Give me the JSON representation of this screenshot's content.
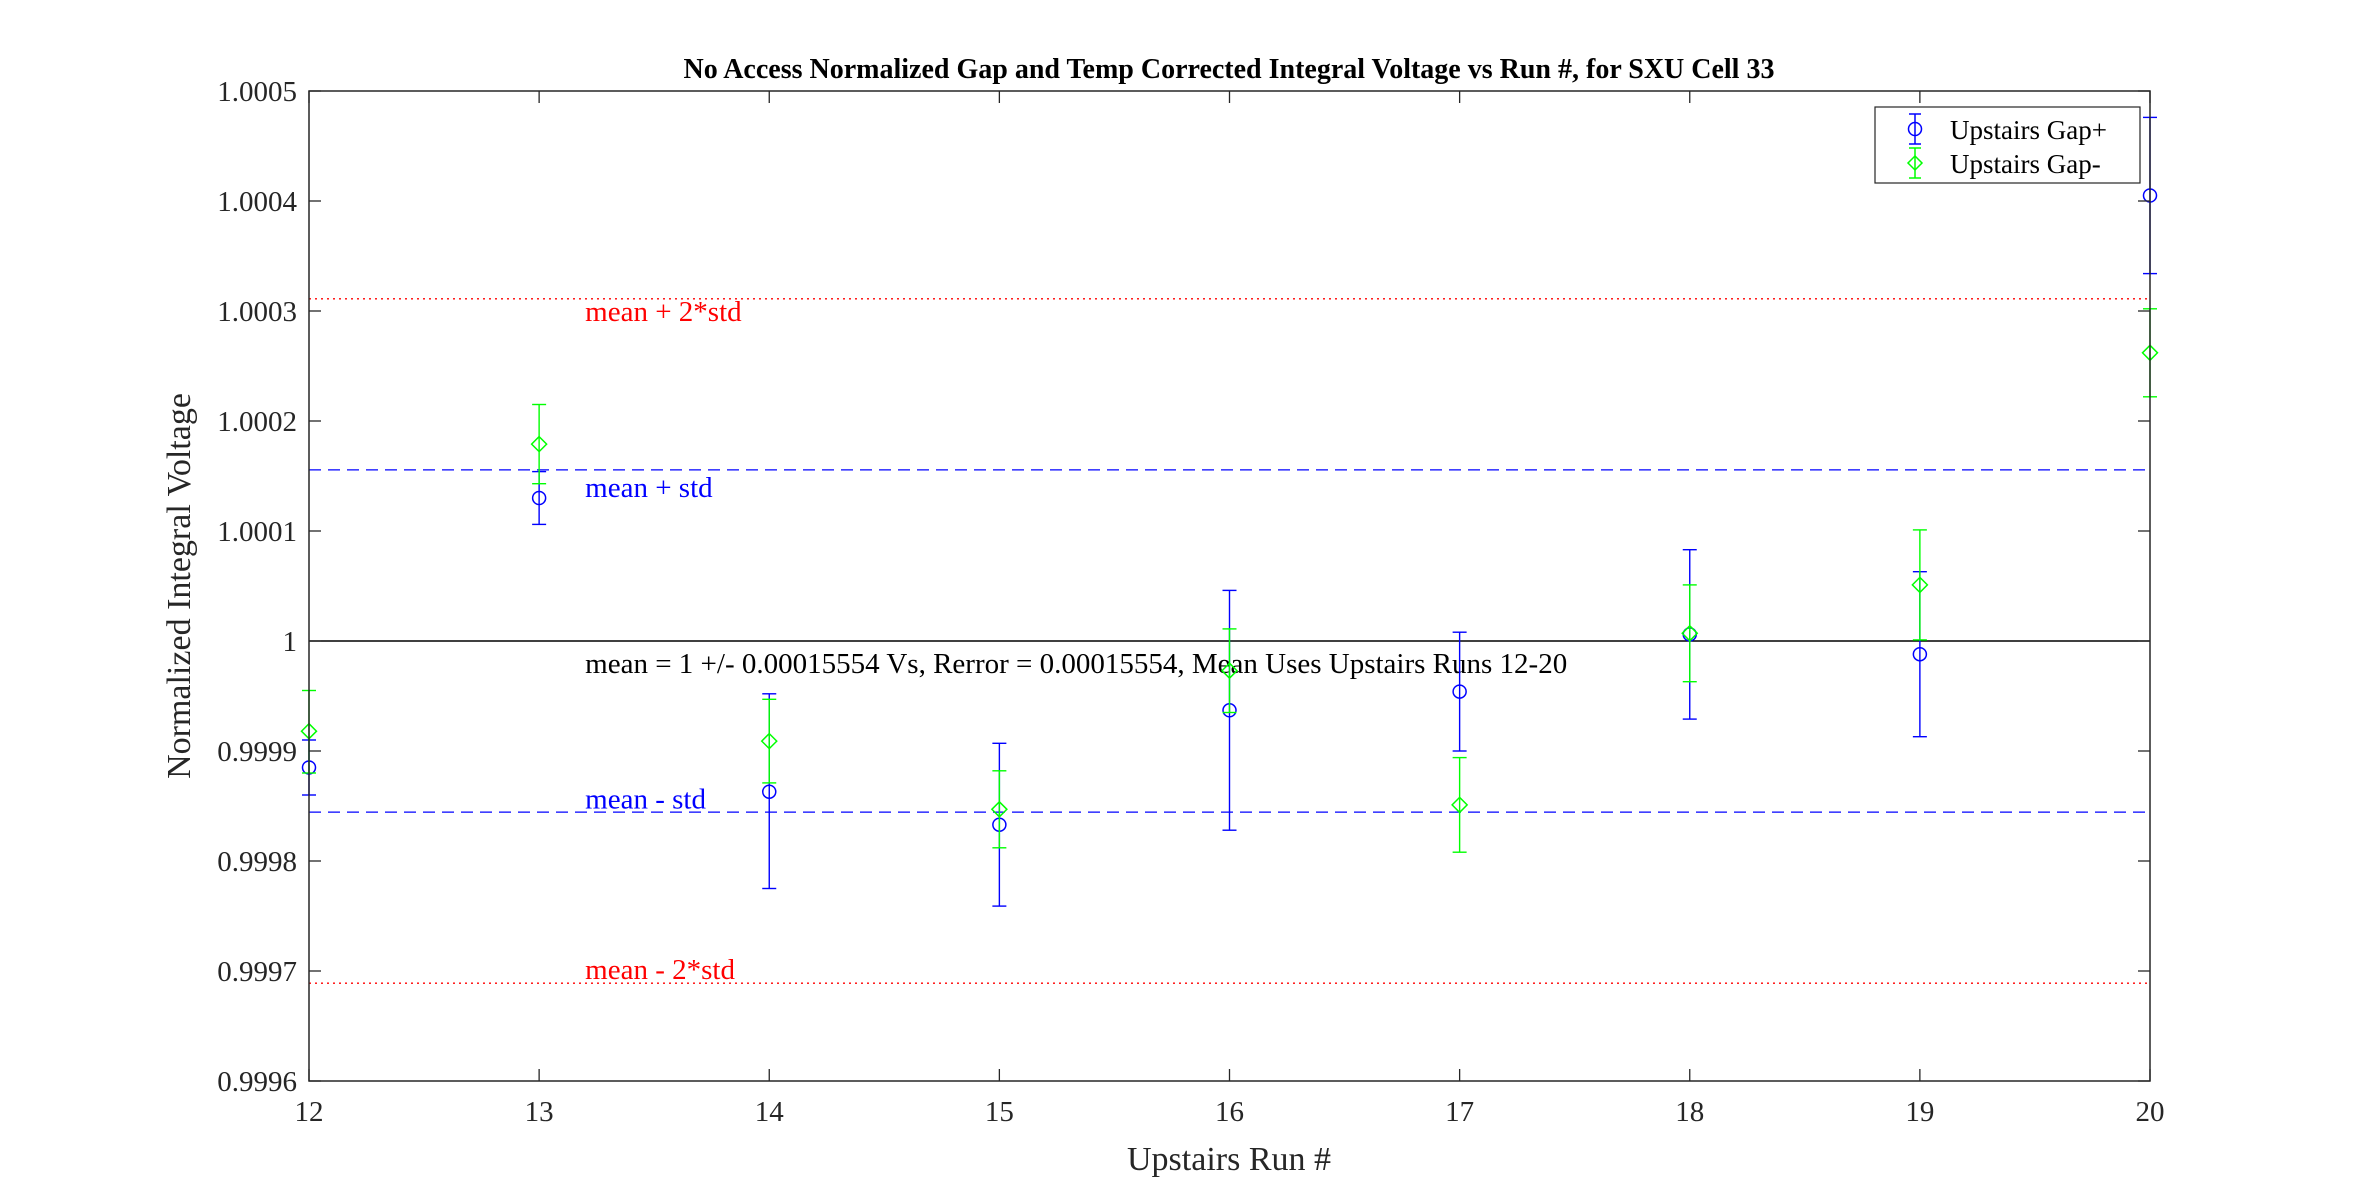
{
  "chart_data": {
    "type": "scatter",
    "title": "No Access Normalized Gap and Temp Corrected Integral Voltage vs Run #, for SXU Cell 33",
    "xlabel": "Upstairs Run #",
    "ylabel": "Normalized Integral Voltage",
    "xlim": [
      12,
      20
    ],
    "ylim": [
      0.9996,
      1.0005
    ],
    "x_ticks": [
      12,
      13,
      14,
      15,
      16,
      17,
      18,
      19,
      20
    ],
    "x_tick_labels": [
      "12",
      "13",
      "14",
      "15",
      "16",
      "17",
      "18",
      "19",
      "20"
    ],
    "y_ticks": [
      0.9996,
      0.9997,
      0.9998,
      0.9999,
      1.0,
      1.0001,
      1.0002,
      1.0003,
      1.0004,
      1.0005
    ],
    "y_tick_labels": [
      "0.9996",
      "0.9997",
      "0.9998",
      "0.9999",
      "1",
      "1.0001",
      "1.0002",
      "1.0003",
      "1.0004",
      "1.0005"
    ],
    "grid": false,
    "legend_position": "top-right",
    "series": [
      {
        "name": "Upstairs Gap+",
        "color": "#0000ff",
        "marker": "circle",
        "points": [
          {
            "x": 12,
            "y": 0.999885,
            "lo": 0.99986,
            "hi": 0.99991
          },
          {
            "x": 13,
            "y": 1.00013,
            "lo": 1.000106,
            "hi": 1.000154
          },
          {
            "x": 14,
            "y": 0.999863,
            "lo": 0.999775,
            "hi": 0.999952
          },
          {
            "x": 15,
            "y": 0.999833,
            "lo": 0.999759,
            "hi": 0.999907
          },
          {
            "x": 16,
            "y": 0.999937,
            "lo": 0.999828,
            "hi": 1.000046
          },
          {
            "x": 17,
            "y": 0.999954,
            "lo": 0.9999,
            "hi": 1.000008
          },
          {
            "x": 18,
            "y": 1.000006,
            "lo": 0.999929,
            "hi": 1.000083
          },
          {
            "x": 19,
            "y": 0.999988,
            "lo": 0.999913,
            "hi": 1.000063
          },
          {
            "x": 20,
            "y": 1.000405,
            "lo": 1.000334,
            "hi": 1.000476
          }
        ]
      },
      {
        "name": "Upstairs Gap-",
        "color": "#00ff00",
        "marker": "diamond",
        "points": [
          {
            "x": 12,
            "y": 0.999918,
            "lo": 0.99988,
            "hi": 0.999955
          },
          {
            "x": 13,
            "y": 1.000179,
            "lo": 1.000143,
            "hi": 1.000215
          },
          {
            "x": 14,
            "y": 0.999909,
            "lo": 0.999871,
            "hi": 0.999947
          },
          {
            "x": 15,
            "y": 0.999847,
            "lo": 0.999812,
            "hi": 0.999882
          },
          {
            "x": 16,
            "y": 0.999973,
            "lo": 0.999935,
            "hi": 1.000011
          },
          {
            "x": 17,
            "y": 0.999851,
            "lo": 0.999808,
            "hi": 0.999894
          },
          {
            "x": 18,
            "y": 1.000007,
            "lo": 0.999963,
            "hi": 1.000051
          },
          {
            "x": 19,
            "y": 1.000051,
            "lo": 1.000001,
            "hi": 1.000101
          },
          {
            "x": 20,
            "y": 1.000262,
            "lo": 1.000222,
            "hi": 1.000302
          }
        ]
      }
    ],
    "reference_lines": [
      {
        "y": 1.00031108,
        "style": "dotted",
        "color": "#ff0000",
        "label": "mean + 2*std",
        "label_y": 1.0003,
        "label_color": "#ff0000"
      },
      {
        "y": 1.00015554,
        "style": "dashed",
        "color": "#0000ff",
        "label": "mean + std",
        "label_y": 1.00014,
        "label_color": "#0000ff"
      },
      {
        "y": 1.0,
        "style": "solid",
        "color": "#000000",
        "label": "mean = 1 +/- 0.00015554 Vs, Rerror = 0.00015554, Mean Uses Upstairs Runs 12-20",
        "label_y": 0.99998,
        "label_color": "#000000"
      },
      {
        "y": 0.99984446,
        "style": "dashed",
        "color": "#0000ff",
        "label": "mean - std",
        "label_y": 0.999857,
        "label_color": "#0000ff"
      },
      {
        "y": 0.99968892,
        "style": "dotted",
        "color": "#ff0000",
        "label": "mean - 2*std",
        "label_y": 0.999702,
        "label_color": "#ff0000"
      }
    ],
    "reference_label_x": 13.2
  }
}
